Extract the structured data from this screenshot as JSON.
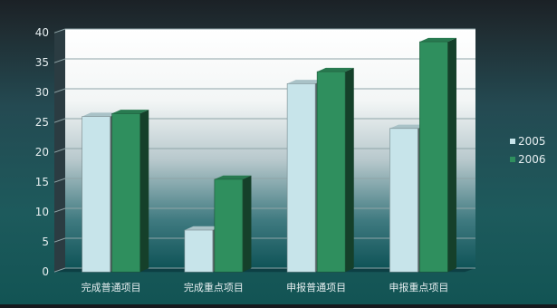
{
  "chart_data": {
    "type": "bar",
    "title": "",
    "xlabel": "",
    "ylabel": "",
    "ylim": [
      0,
      40
    ],
    "yticks": [
      0,
      5,
      10,
      15,
      20,
      25,
      30,
      35,
      40
    ],
    "grid": true,
    "legend_position": "right",
    "categories": [
      "完成普通项目",
      "完成重点项目",
      "申报普通项目",
      "申报重点项目"
    ],
    "series": [
      {
        "name": "2005",
        "values": [
          26,
          7,
          31.5,
          24
        ],
        "color": "#c7e4ea"
      },
      {
        "name": "2006",
        "values": [
          26.5,
          15.5,
          33.5,
          38.5
        ],
        "color": "#2f8f5e"
      }
    ]
  }
}
